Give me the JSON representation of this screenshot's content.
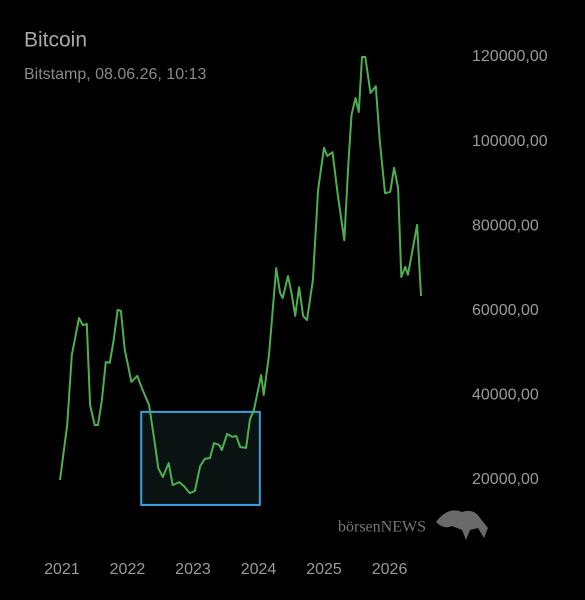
{
  "chart_data": {
    "type": "line",
    "title": "Bitcoin",
    "subtitle": "Bitstamp, 08.06.26, 10:13",
    "watermark": "börsenNEWS",
    "color": "#4cb050",
    "x": [
      2020.97,
      2021.08,
      2021.15,
      2021.26,
      2021.32,
      2021.38,
      2021.43,
      2021.5,
      2021.55,
      2021.61,
      2021.67,
      2021.73,
      2021.79,
      2021.85,
      2021.9,
      2021.96,
      2022.0,
      2022.06,
      2022.15,
      2022.22,
      2022.33,
      2022.41,
      2022.47,
      2022.54,
      2022.63,
      2022.69,
      2022.79,
      2022.86,
      2022.95,
      2023.03,
      2023.11,
      2023.18,
      2023.26,
      2023.32,
      2023.4,
      2023.44,
      2023.52,
      2023.6,
      2023.66,
      2023.72,
      2023.81,
      2023.87,
      2023.93,
      2024.04,
      2024.08,
      2024.16,
      2024.27,
      2024.33,
      2024.37,
      2024.45,
      2024.51,
      2024.56,
      2024.62,
      2024.68,
      2024.74,
      2024.83,
      2024.91,
      2025.0,
      2025.05,
      2025.13,
      2025.21,
      2025.31,
      2025.37,
      2025.42,
      2025.48,
      2025.53,
      2025.58,
      2025.63,
      2025.71,
      2025.79,
      2025.85,
      2025.93,
      2026.01,
      2026.07,
      2026.13,
      2026.18,
      2026.24,
      2026.28,
      2026.36,
      2026.42,
      2026.48
    ],
    "values": [
      20000,
      33000,
      49500,
      58300,
      56600,
      56900,
      37700,
      33000,
      33000,
      38900,
      47900,
      47700,
      53100,
      60200,
      60000,
      50700,
      47700,
      43200,
      44600,
      41700,
      37700,
      29500,
      22800,
      20700,
      24000,
      18800,
      19500,
      18600,
      16900,
      17400,
      23300,
      25000,
      25200,
      28700,
      28300,
      27100,
      30900,
      30200,
      30400,
      27800,
      27600,
      34400,
      36500,
      44800,
      40100,
      49600,
      70100,
      64200,
      63000,
      68200,
      63700,
      58800,
      65600,
      58800,
      57800,
      67300,
      88600,
      98500,
      96600,
      97500,
      87400,
      76700,
      94500,
      106300,
      110300,
      107000,
      120000,
      120000,
      111500,
      113100,
      100400,
      87800,
      88100,
      93800,
      89000,
      68000,
      70400,
      68500,
      75100,
      80300,
      63500
    ],
    "xlim": [
      2020.36,
      2026.77
    ],
    "xticks": [
      2021,
      2022,
      2023,
      2024,
      2025,
      2026
    ],
    "ylim": [
      0,
      130000
    ],
    "yticks": [
      {
        "value": 20000,
        "label": "20000,00"
      },
      {
        "value": 40000,
        "label": "40000,00"
      },
      {
        "value": 60000,
        "label": "60000,00"
      },
      {
        "value": 80000,
        "label": "80000,00"
      },
      {
        "value": 100000,
        "label": "100000,00"
      },
      {
        "value": 120000,
        "label": "120000,00"
      }
    ],
    "highlight": {
      "x": [
        2022.21,
        2024.02
      ],
      "y": [
        14100,
        36100
      ],
      "color": "#3aa0e0"
    }
  }
}
